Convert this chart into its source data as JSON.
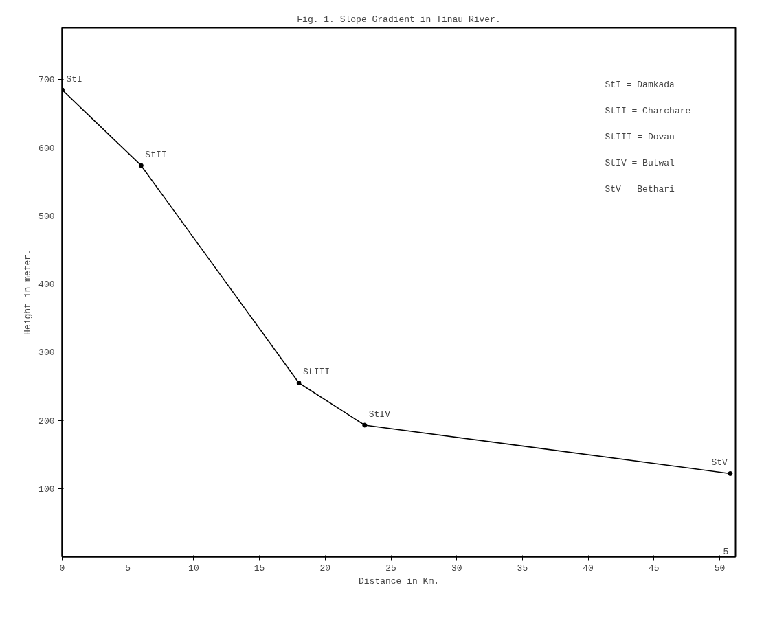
{
  "chart_data": {
    "type": "line",
    "title": "Fig. 1. Slope Gradient in Tinau River.",
    "xlabel": "Distance in Km.",
    "ylabel": "Height in meter.",
    "x": [
      0,
      6,
      18,
      23,
      50.8
    ],
    "series": [
      {
        "color": "#000000",
        "values": [
          685,
          574,
          255,
          193,
          122
        ]
      }
    ],
    "xlim": [
      0,
      51.2
    ],
    "ylim": [
      0,
      776
    ],
    "xticks": [
      0,
      5,
      10,
      15,
      20,
      25,
      30,
      35,
      40,
      45,
      50
    ],
    "yticks": [
      100,
      200,
      300,
      400,
      500,
      600,
      700
    ],
    "grid": false,
    "marker": "circle",
    "line_style": "solid",
    "annotations": [
      {
        "text": "StI",
        "x": 0,
        "y": 685
      },
      {
        "text": "StII",
        "x": 6,
        "y": 574
      },
      {
        "text": "StIII",
        "x": 18,
        "y": 255
      },
      {
        "text": "StIV",
        "x": 23,
        "y": 193
      },
      {
        "text": "StV",
        "x": 50.8,
        "y": 122
      },
      "5",
      "StI   = Damkada",
      "StII  = Charchare",
      "StIII = Dovan",
      "StIV  = Butwal",
      "StV   = Bethari"
    ]
  }
}
